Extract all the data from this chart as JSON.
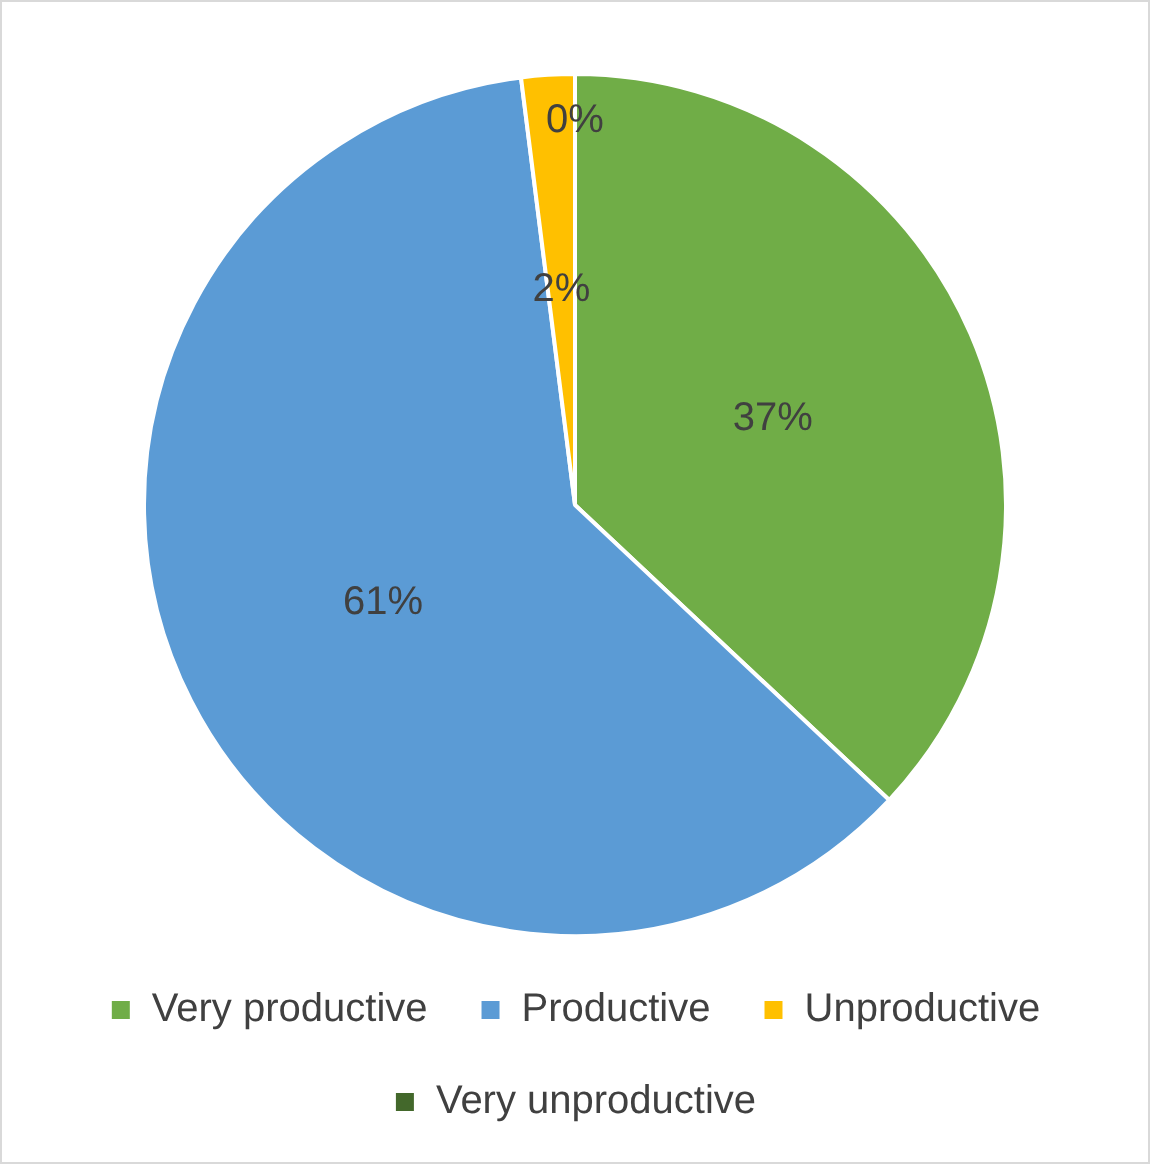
{
  "chart_data": {
    "type": "pie",
    "categories": [
      "Very productive",
      "Productive",
      "Unproductive",
      "Very unproductive"
    ],
    "values": [
      37,
      61,
      2,
      0
    ],
    "colors": [
      "#70ad47",
      "#5b9bd5",
      "#ffc000",
      "#43682b"
    ],
    "value_labels": [
      "37%",
      "61%",
      "2%",
      "0%"
    ],
    "legend": "bottom"
  }
}
